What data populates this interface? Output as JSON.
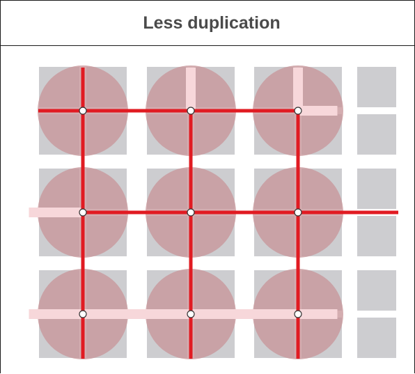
{
  "header": {
    "title": "Less duplication"
  },
  "colors": {
    "tile": "#cdcdd0",
    "circle": "#c8969a",
    "band": "#f7d7da",
    "line": "#e11b22",
    "node_fill": "#ffffff",
    "node_stroke": "#333333",
    "border": "#1a1a1a",
    "title_text": "#4a4a4a"
  },
  "diagram": {
    "grid": {
      "cell_rows": 3,
      "cell_cols": 4,
      "circle_cols": 3
    },
    "nodes": [
      {
        "row": 0,
        "col": 0
      },
      {
        "row": 0,
        "col": 1
      },
      {
        "row": 0,
        "col": 2
      },
      {
        "row": 1,
        "col": 0
      },
      {
        "row": 1,
        "col": 1
      },
      {
        "row": 1,
        "col": 2
      },
      {
        "row": 2,
        "col": 0
      },
      {
        "row": 2,
        "col": 1
      },
      {
        "row": 2,
        "col": 2
      }
    ],
    "horizontal_lines": [
      {
        "row": 0,
        "from": "left-edge",
        "to_col": 2
      },
      {
        "row": 1,
        "from_col": 0,
        "to": "right-edge"
      }
    ],
    "vertical_lines": [
      {
        "col": 0,
        "from": "top-edge",
        "to": "bottom-edge"
      },
      {
        "col": 1,
        "from_row": 0,
        "to": "bottom-edge"
      },
      {
        "col": 2,
        "from_row": 0,
        "to": "bottom-edge"
      }
    ],
    "bands": {
      "vertical": [
        {
          "col": 1,
          "from": "top-edge",
          "to_row": 0
        },
        {
          "col": 2,
          "from": "top-edge",
          "to_row": 0
        }
      ],
      "horizontal": [
        {
          "row": 0,
          "from_col": 2,
          "to_col": 2.5
        },
        {
          "row": 1,
          "from_col": -0.5,
          "to_col": 0
        },
        {
          "row": 2,
          "from_col": -0.5,
          "to_col": 2.5
        }
      ]
    }
  }
}
